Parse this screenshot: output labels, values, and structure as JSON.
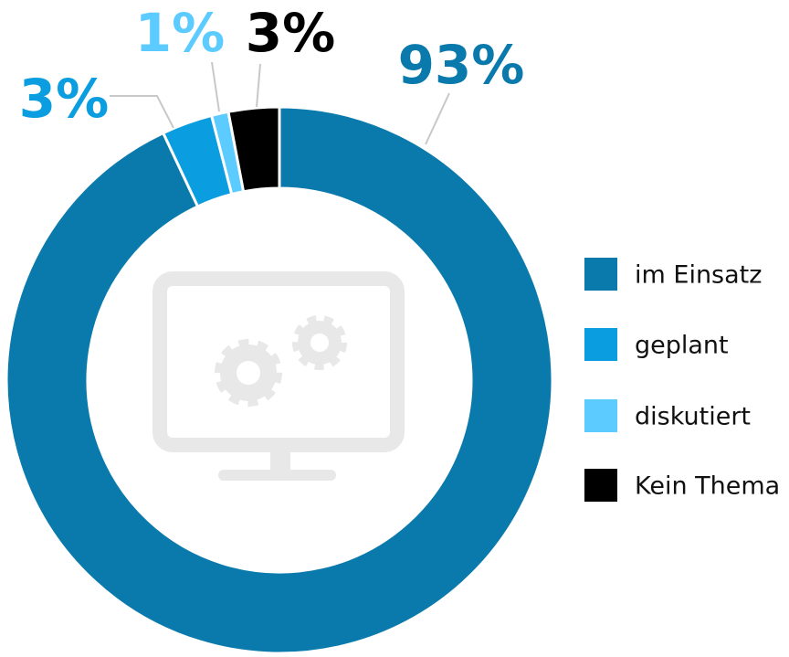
{
  "chart_data": {
    "type": "donut",
    "categories": [
      "im Einsatz",
      "geplant",
      "diskutiert",
      "Kein Thema"
    ],
    "values": [
      93,
      3,
      1,
      3
    ],
    "value_labels": [
      "93%",
      "3%",
      "1%",
      "3%"
    ],
    "colors": [
      "#0a7aad",
      "#0a9de0",
      "#5ccbff",
      "#000000"
    ],
    "legend": "right"
  }
}
